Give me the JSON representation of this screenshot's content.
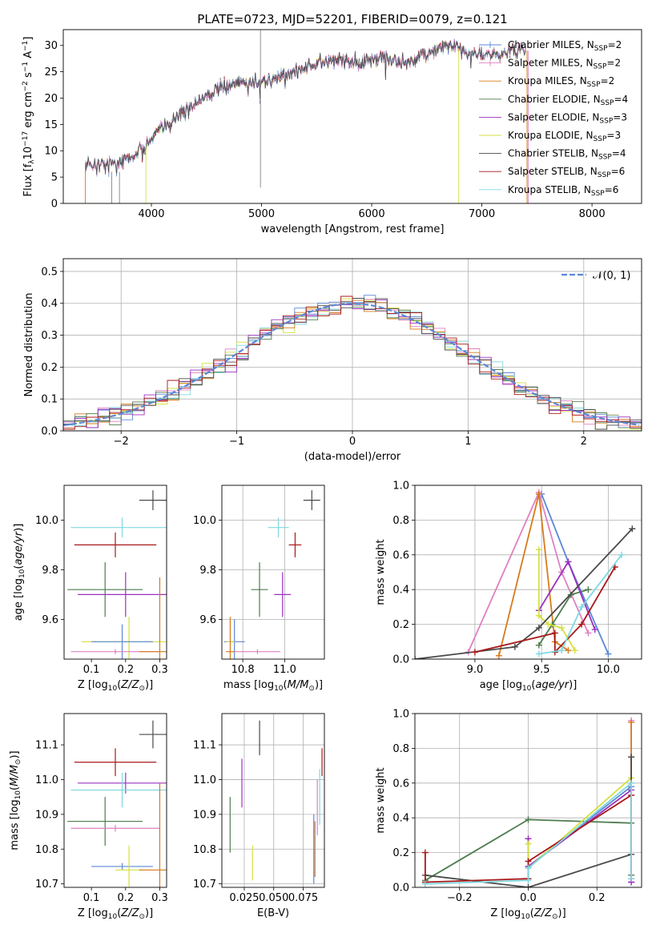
{
  "colors": {
    "chabrier_miles": "#5b88d6",
    "salpeter_miles": "#e080c0",
    "kroupa_miles": "#d87a1a",
    "chabrier_elodie": "#4e7c4e",
    "salpeter_elodie": "#9c30c0",
    "kroupa_elodie": "#d4e040",
    "chabrier_stelib": "#4a4a4a",
    "salpeter_stelib": "#a81818",
    "kroupa_stelib": "#80d8e0",
    "normal_curve": "#5b88d6",
    "grid": "#b0b0b0"
  },
  "chart_data": [
    {
      "id": "spectrum",
      "type": "line",
      "title": "PLATE=0723, MJD=52201, FIBERID=0079, z=0.121",
      "xlabel": "wavelength [Angstrom, rest frame]",
      "ylabel": "Flux [f_λ10^-17 erg cm^-2 s^-1 A^-1]",
      "xlim": [
        3200,
        8450
      ],
      "ylim": [
        0,
        33
      ],
      "xticks": [
        4000,
        5000,
        6000,
        7000,
        8000
      ],
      "yticks": [
        0,
        5,
        10,
        15,
        20,
        25,
        30
      ],
      "grid": false,
      "legend_position": "top-right",
      "continuum": [
        [
          3400,
          7.5
        ],
        [
          3600,
          7.5
        ],
        [
          3800,
          8.5
        ],
        [
          3950,
          11
        ],
        [
          4050,
          13.5
        ],
        [
          4200,
          16
        ],
        [
          4300,
          18
        ],
        [
          4500,
          20.5
        ],
        [
          4700,
          22.5
        ],
        [
          4900,
          23
        ],
        [
          5100,
          23.5
        ],
        [
          5300,
          25
        ],
        [
          5500,
          26.5
        ],
        [
          5700,
          27.5
        ],
        [
          5900,
          26.5
        ],
        [
          6100,
          28
        ],
        [
          6300,
          26.5
        ],
        [
          6500,
          28.5
        ],
        [
          6700,
          30
        ],
        [
          6900,
          28.5
        ],
        [
          7100,
          28
        ],
        [
          7300,
          29
        ]
      ],
      "series": [
        {
          "name": "Chabrier MILES, N_SSP=2",
          "range": [
            3400,
            7400
          ]
        },
        {
          "name": "Salpeter MILES, N_SSP=2",
          "range": [
            3400,
            7400
          ]
        },
        {
          "name": "Kroupa MILES, N_SSP=2",
          "range": [
            3400,
            7400
          ]
        },
        {
          "name": "Chabrier ELODIE, N_SSP=4",
          "range": [
            3900,
            6800
          ]
        },
        {
          "name": "Salpeter ELODIE, N_SSP=3",
          "range": [
            3900,
            6800
          ]
        },
        {
          "name": "Kroupa ELODIE, N_SSP=3",
          "range": [
            3900,
            6800
          ]
        },
        {
          "name": "Chabrier STELIB, N_SSP=4",
          "range": [
            3400,
            7400
          ]
        },
        {
          "name": "Salpeter STELIB, N_SSP=6",
          "range": [
            3400,
            7400
          ]
        },
        {
          "name": "Kroupa STELIB, N_SSP=6",
          "range": [
            3400,
            7400
          ]
        }
      ]
    },
    {
      "id": "residuals",
      "type": "line",
      "xlabel": "(data-model)/error",
      "ylabel": "Normed distribution",
      "xlim": [
        -2.5,
        2.5
      ],
      "ylim": [
        0,
        0.54
      ],
      "xticks": [
        -2,
        -1,
        0,
        1,
        2
      ],
      "yticks": [
        0.0,
        0.1,
        0.2,
        0.3,
        0.4,
        0.5
      ],
      "grid": true,
      "legend_position": "top-right",
      "legend": [
        "N(0,1)"
      ],
      "bin_width": 0.1,
      "note": "stepped histograms, one per model, approximating N(0,1)"
    },
    {
      "id": "age_vs_Z",
      "type": "scatter",
      "xlabel": "Z [log10(Z/Z⊙)]",
      "ylabel": "age  [log10(age/yr)]",
      "xlim": [
        0.02,
        0.32
      ],
      "ylim": [
        9.44,
        10.14
      ],
      "xticks": [
        0.1,
        0.2,
        0.3
      ],
      "yticks": [
        9.6,
        9.8,
        10.0
      ],
      "grid": false,
      "points": [
        {
          "model": "chabrier_stelib",
          "x": 0.28,
          "y": 10.08,
          "xerr": 0.04,
          "yerr": 0.04
        },
        {
          "model": "kroupa_stelib",
          "x": 0.19,
          "y": 9.97,
          "xerr": 0.15,
          "yerr": 0.04
        },
        {
          "model": "salpeter_stelib",
          "x": 0.17,
          "y": 9.9,
          "xerr": 0.12,
          "yerr": 0.05
        },
        {
          "model": "chabrier_elodie",
          "x": 0.14,
          "y": 9.72,
          "xerr": 0.11,
          "yerr": 0.11
        },
        {
          "model": "salpeter_elodie",
          "x": 0.2,
          "y": 9.7,
          "xerr": 0.14,
          "yerr": 0.09
        },
        {
          "model": "kroupa_elodie",
          "x": 0.21,
          "y": 9.51,
          "xerr": 0.14,
          "yerr": 0.1
        },
        {
          "model": "chabrier_miles",
          "x": 0.19,
          "y": 9.51,
          "xerr": 0.09,
          "yerr": 0.07
        },
        {
          "model": "salpeter_miles",
          "x": 0.17,
          "y": 9.47,
          "xerr": 0.13,
          "yerr": 0.01
        },
        {
          "model": "kroupa_miles",
          "x": 0.3,
          "y": 9.47,
          "xerr": 0.06,
          "yerr": 0.3
        }
      ]
    },
    {
      "id": "age_vs_mass",
      "type": "scatter",
      "xlabel": "mass [log10(M/M⊙)]",
      "ylabel": "",
      "xlim": [
        10.7,
        11.19
      ],
      "ylim": [
        9.44,
        10.14
      ],
      "xticks": [
        10.8,
        11.0
      ],
      "yticks": [
        9.6,
        9.8,
        10.0
      ],
      "grid": true,
      "points": [
        {
          "model": "chabrier_stelib",
          "x": 11.13,
          "y": 10.08,
          "xerr": 0.04,
          "yerr": 0.04
        },
        {
          "model": "kroupa_stelib",
          "x": 10.97,
          "y": 9.97,
          "xerr": 0.05,
          "yerr": 0.04
        },
        {
          "model": "salpeter_stelib",
          "x": 11.05,
          "y": 9.9,
          "xerr": 0.03,
          "yerr": 0.05
        },
        {
          "model": "chabrier_elodie",
          "x": 10.88,
          "y": 9.72,
          "xerr": 0.04,
          "yerr": 0.11
        },
        {
          "model": "salpeter_elodie",
          "x": 10.99,
          "y": 9.7,
          "xerr": 0.04,
          "yerr": 0.09
        },
        {
          "model": "chabrier_miles",
          "x": 10.76,
          "y": 9.51,
          "xerr": 0.05,
          "yerr": 0.09
        },
        {
          "model": "kroupa_elodie",
          "x": 10.74,
          "y": 9.51,
          "xerr": 0.02,
          "yerr": 0.1
        },
        {
          "model": "salpeter_miles",
          "x": 10.87,
          "y": 9.47,
          "xerr": 0.11,
          "yerr": 0.01
        },
        {
          "model": "kroupa_miles",
          "x": 10.74,
          "y": 9.47,
          "xerr": 0.02,
          "yerr": 0.14
        }
      ]
    },
    {
      "id": "mass_weight_vs_age",
      "type": "line",
      "xlabel": "age  [log10(age/yr)]",
      "ylabel": "mass weight",
      "xlim": [
        8.55,
        10.25
      ],
      "ylim": [
        0,
        1.0
      ],
      "xticks": [
        9.0,
        9.5,
        10.0
      ],
      "yticks": [
        0.0,
        0.2,
        0.4,
        0.6,
        0.8,
        1.0
      ],
      "grid": true,
      "series": [
        {
          "model": "chabrier_miles",
          "x": [
            9.5,
            9.7,
            10.0
          ],
          "y": [
            0.95,
            0.56,
            0.03
          ]
        },
        {
          "model": "salpeter_miles",
          "x": [
            8.95,
            9.48,
            9.65,
            9.85
          ],
          "y": [
            0.04,
            0.96,
            0.5,
            0.15
          ]
        },
        {
          "model": "kroupa_miles",
          "x": [
            9.18,
            9.48,
            9.6,
            9.7
          ],
          "y": [
            0.02,
            0.95,
            0.1,
            0.05
          ]
        },
        {
          "model": "chabrier_elodie",
          "x": [
            9.48,
            9.58,
            9.72,
            9.85
          ],
          "y": [
            0.08,
            0.2,
            0.37,
            0.4
          ]
        },
        {
          "model": "salpeter_elodie",
          "x": [
            9.48,
            9.7,
            9.9
          ],
          "y": [
            0.28,
            0.56,
            0.17
          ]
        },
        {
          "model": "kroupa_elodie",
          "x": [
            9.48,
            9.48,
            9.55,
            9.65,
            9.75
          ],
          "y": [
            0.63,
            0.25,
            0.2,
            0.18,
            0.05
          ]
        },
        {
          "model": "chabrier_stelib",
          "x": [
            8.55,
            9.3,
            9.48,
            10.18
          ],
          "y": [
            0.0,
            0.07,
            0.18,
            0.75
          ]
        },
        {
          "model": "salpeter_stelib",
          "x": [
            9.0,
            9.6,
            9.6,
            9.8,
            10.05
          ],
          "y": [
            0.04,
            0.15,
            0.04,
            0.2,
            0.53
          ]
        },
        {
          "model": "kroupa_stelib",
          "x": [
            9.48,
            9.65,
            9.8,
            10.1
          ],
          "y": [
            0.03,
            0.05,
            0.3,
            0.6
          ]
        }
      ]
    },
    {
      "id": "mass_vs_Z",
      "type": "scatter",
      "xlabel": "Z [log10(Z/Z⊙)]",
      "ylabel": "mass [log10(M/M⊙)]",
      "xlim": [
        0.02,
        0.32
      ],
      "ylim": [
        10.69,
        11.19
      ],
      "xticks": [
        0.1,
        0.2,
        0.3
      ],
      "yticks": [
        10.7,
        10.8,
        10.9,
        11.0,
        11.1
      ],
      "grid": false,
      "points": [
        {
          "model": "chabrier_stelib",
          "x": 0.28,
          "y": 11.13,
          "xerr": 0.04,
          "yerr": 0.04
        },
        {
          "model": "salpeter_stelib",
          "x": 0.17,
          "y": 11.05,
          "xerr": 0.12,
          "yerr": 0.04
        },
        {
          "model": "salpeter_elodie",
          "x": 0.2,
          "y": 10.99,
          "xerr": 0.14,
          "yerr": 0.03
        },
        {
          "model": "kroupa_stelib",
          "x": 0.19,
          "y": 10.97,
          "xerr": 0.15,
          "yerr": 0.05
        },
        {
          "model": "chabrier_elodie",
          "x": 0.14,
          "y": 10.88,
          "xerr": 0.11,
          "yerr": 0.07
        },
        {
          "model": "salpeter_miles",
          "x": 0.17,
          "y": 10.86,
          "xerr": 0.13,
          "yerr": 0.01
        },
        {
          "model": "chabrier_miles",
          "x": 0.19,
          "y": 10.75,
          "xerr": 0.09,
          "yerr": 0.01
        },
        {
          "model": "kroupa_elodie",
          "x": 0.21,
          "y": 10.74,
          "xerr": 0.04,
          "yerr": 0.07
        },
        {
          "model": "kroupa_miles",
          "x": 0.3,
          "y": 10.74,
          "xerr": 0.06,
          "yerr": 0.25
        }
      ]
    },
    {
      "id": "mass_vs_ebv",
      "type": "scatter",
      "xlabel": "E(B-V)",
      "ylabel": "",
      "xlim": [
        0.006,
        0.093
      ],
      "ylim": [
        10.69,
        11.19
      ],
      "xticks": [
        0.025,
        0.05,
        0.075
      ],
      "xtick_labels": [
        "0.025",
        "0.050",
        "0.075"
      ],
      "yticks": [
        10.7,
        10.8,
        10.9,
        11.0,
        11.1
      ],
      "grid": true,
      "points": [
        {
          "model": "chabrier_elodie",
          "x": 0.013,
          "y": 10.87,
          "yerr": 0.08
        },
        {
          "model": "salpeter_elodie",
          "x": 0.023,
          "y": 10.99,
          "yerr": 0.07
        },
        {
          "model": "kroupa_elodie",
          "x": 0.032,
          "y": 10.76,
          "yerr": 0.05
        },
        {
          "model": "chabrier_stelib",
          "x": 0.038,
          "y": 11.12,
          "yerr": 0.05
        },
        {
          "model": "chabrier_miles",
          "x": 0.084,
          "y": 10.8,
          "yerr": 0.1
        },
        {
          "model": "kroupa_miles",
          "x": 0.085,
          "y": 10.8,
          "yerr": 0.08
        },
        {
          "model": "salpeter_miles",
          "x": 0.087,
          "y": 10.92,
          "yerr": 0.08
        },
        {
          "model": "kroupa_stelib",
          "x": 0.089,
          "y": 10.95,
          "yerr": 0.08
        },
        {
          "model": "salpeter_stelib",
          "x": 0.091,
          "y": 11.05,
          "yerr": 0.04
        }
      ]
    },
    {
      "id": "mass_weight_vs_Z",
      "type": "line",
      "xlabel": "Z [log10(Z/Z⊙)]",
      "ylabel": "mass weight",
      "xlim": [
        -0.33,
        0.33
      ],
      "ylim": [
        0,
        1.0
      ],
      "xticks": [
        -0.2,
        0.0,
        0.2
      ],
      "yticks": [
        0.0,
        0.2,
        0.4,
        0.6,
        0.8,
        1.0
      ],
      "grid": true,
      "series": [
        {
          "model": "chabrier_miles",
          "x": [
            0.0,
            0.3,
            0.3
          ],
          "y": [
            0.12,
            0.58,
            0.05
          ]
        },
        {
          "model": "salpeter_miles",
          "x": [
            0.3,
            0.3,
            0.3
          ],
          "y": [
            0.96,
            0.6,
            0.03
          ]
        },
        {
          "model": "kroupa_miles",
          "x": [
            0.3,
            0.3
          ],
          "y": [
            0.95,
            0.05
          ]
        },
        {
          "model": "chabrier_elodie",
          "x": [
            -0.3,
            0.0,
            0.3,
            0.3
          ],
          "y": [
            0.04,
            0.39,
            0.37,
            0.07
          ]
        },
        {
          "model": "salpeter_elodie",
          "x": [
            0.0,
            0.0,
            0.3,
            0.3
          ],
          "y": [
            0.28,
            0.12,
            0.56,
            0.03
          ]
        },
        {
          "model": "kroupa_elodie",
          "x": [
            0.0,
            0.0,
            0.3
          ],
          "y": [
            0.25,
            0.11,
            0.63
          ]
        },
        {
          "model": "chabrier_stelib",
          "x": [
            -0.3,
            0.0,
            0.3,
            0.3
          ],
          "y": [
            0.07,
            0.0,
            0.19,
            0.75
          ]
        },
        {
          "model": "salpeter_stelib",
          "x": [
            -0.3,
            -0.3,
            0.0,
            0.0,
            0.3
          ],
          "y": [
            0.2,
            0.03,
            0.05,
            0.15,
            0.53
          ]
        },
        {
          "model": "kroupa_stelib",
          "x": [
            -0.3,
            0.0,
            0.0,
            0.3,
            0.3
          ],
          "y": [
            0.02,
            0.04,
            0.11,
            0.6,
            0.05
          ]
        }
      ]
    }
  ]
}
